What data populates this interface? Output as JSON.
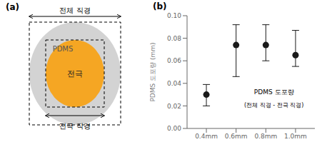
{
  "chart_data": [
    {
      "type": "diagram",
      "title": "(a)",
      "annotations": [
        "PDMS",
        "전극",
        "전체 직경",
        "전극 직경"
      ],
      "colors": [
        "#d3d3d3",
        "#f5a623"
      ]
    },
    {
      "type": "scatter",
      "title": "(b)",
      "x": [
        0.4,
        0.6,
        0.8,
        1.0
      ],
      "values": [
        0.03,
        0.074,
        0.074,
        0.065
      ],
      "error_lower": [
        0.01,
        0.028,
        0.014,
        0.01
      ],
      "error_upper": [
        0.009,
        0.018,
        0.018,
        0.022
      ],
      "color": "#1a1a1a",
      "marker": "circle",
      "y_label": "PDMS 도포량 (mm)",
      "annotations": [
        "PDMS 도포량",
        "(전체 직경 - 전극 직경)"
      ],
      "xlim": [
        0.27,
        1.13
      ],
      "xticks": [
        {
          "value": 0.4,
          "label": "0.4mm"
        },
        {
          "value": 0.6,
          "label": "0.6mm"
        },
        {
          "value": 0.8,
          "label": "0.8mm"
        },
        {
          "value": 1.0,
          "label": "1.0mm"
        }
      ],
      "ylim": [
        0.0,
        0.1
      ],
      "yticks": [
        {
          "value": 0.0,
          "label": "0.00"
        },
        0.02,
        0.04,
        0.06,
        0.08,
        {
          "value": 0.1,
          "label": "0.10"
        }
      ]
    }
  ]
}
